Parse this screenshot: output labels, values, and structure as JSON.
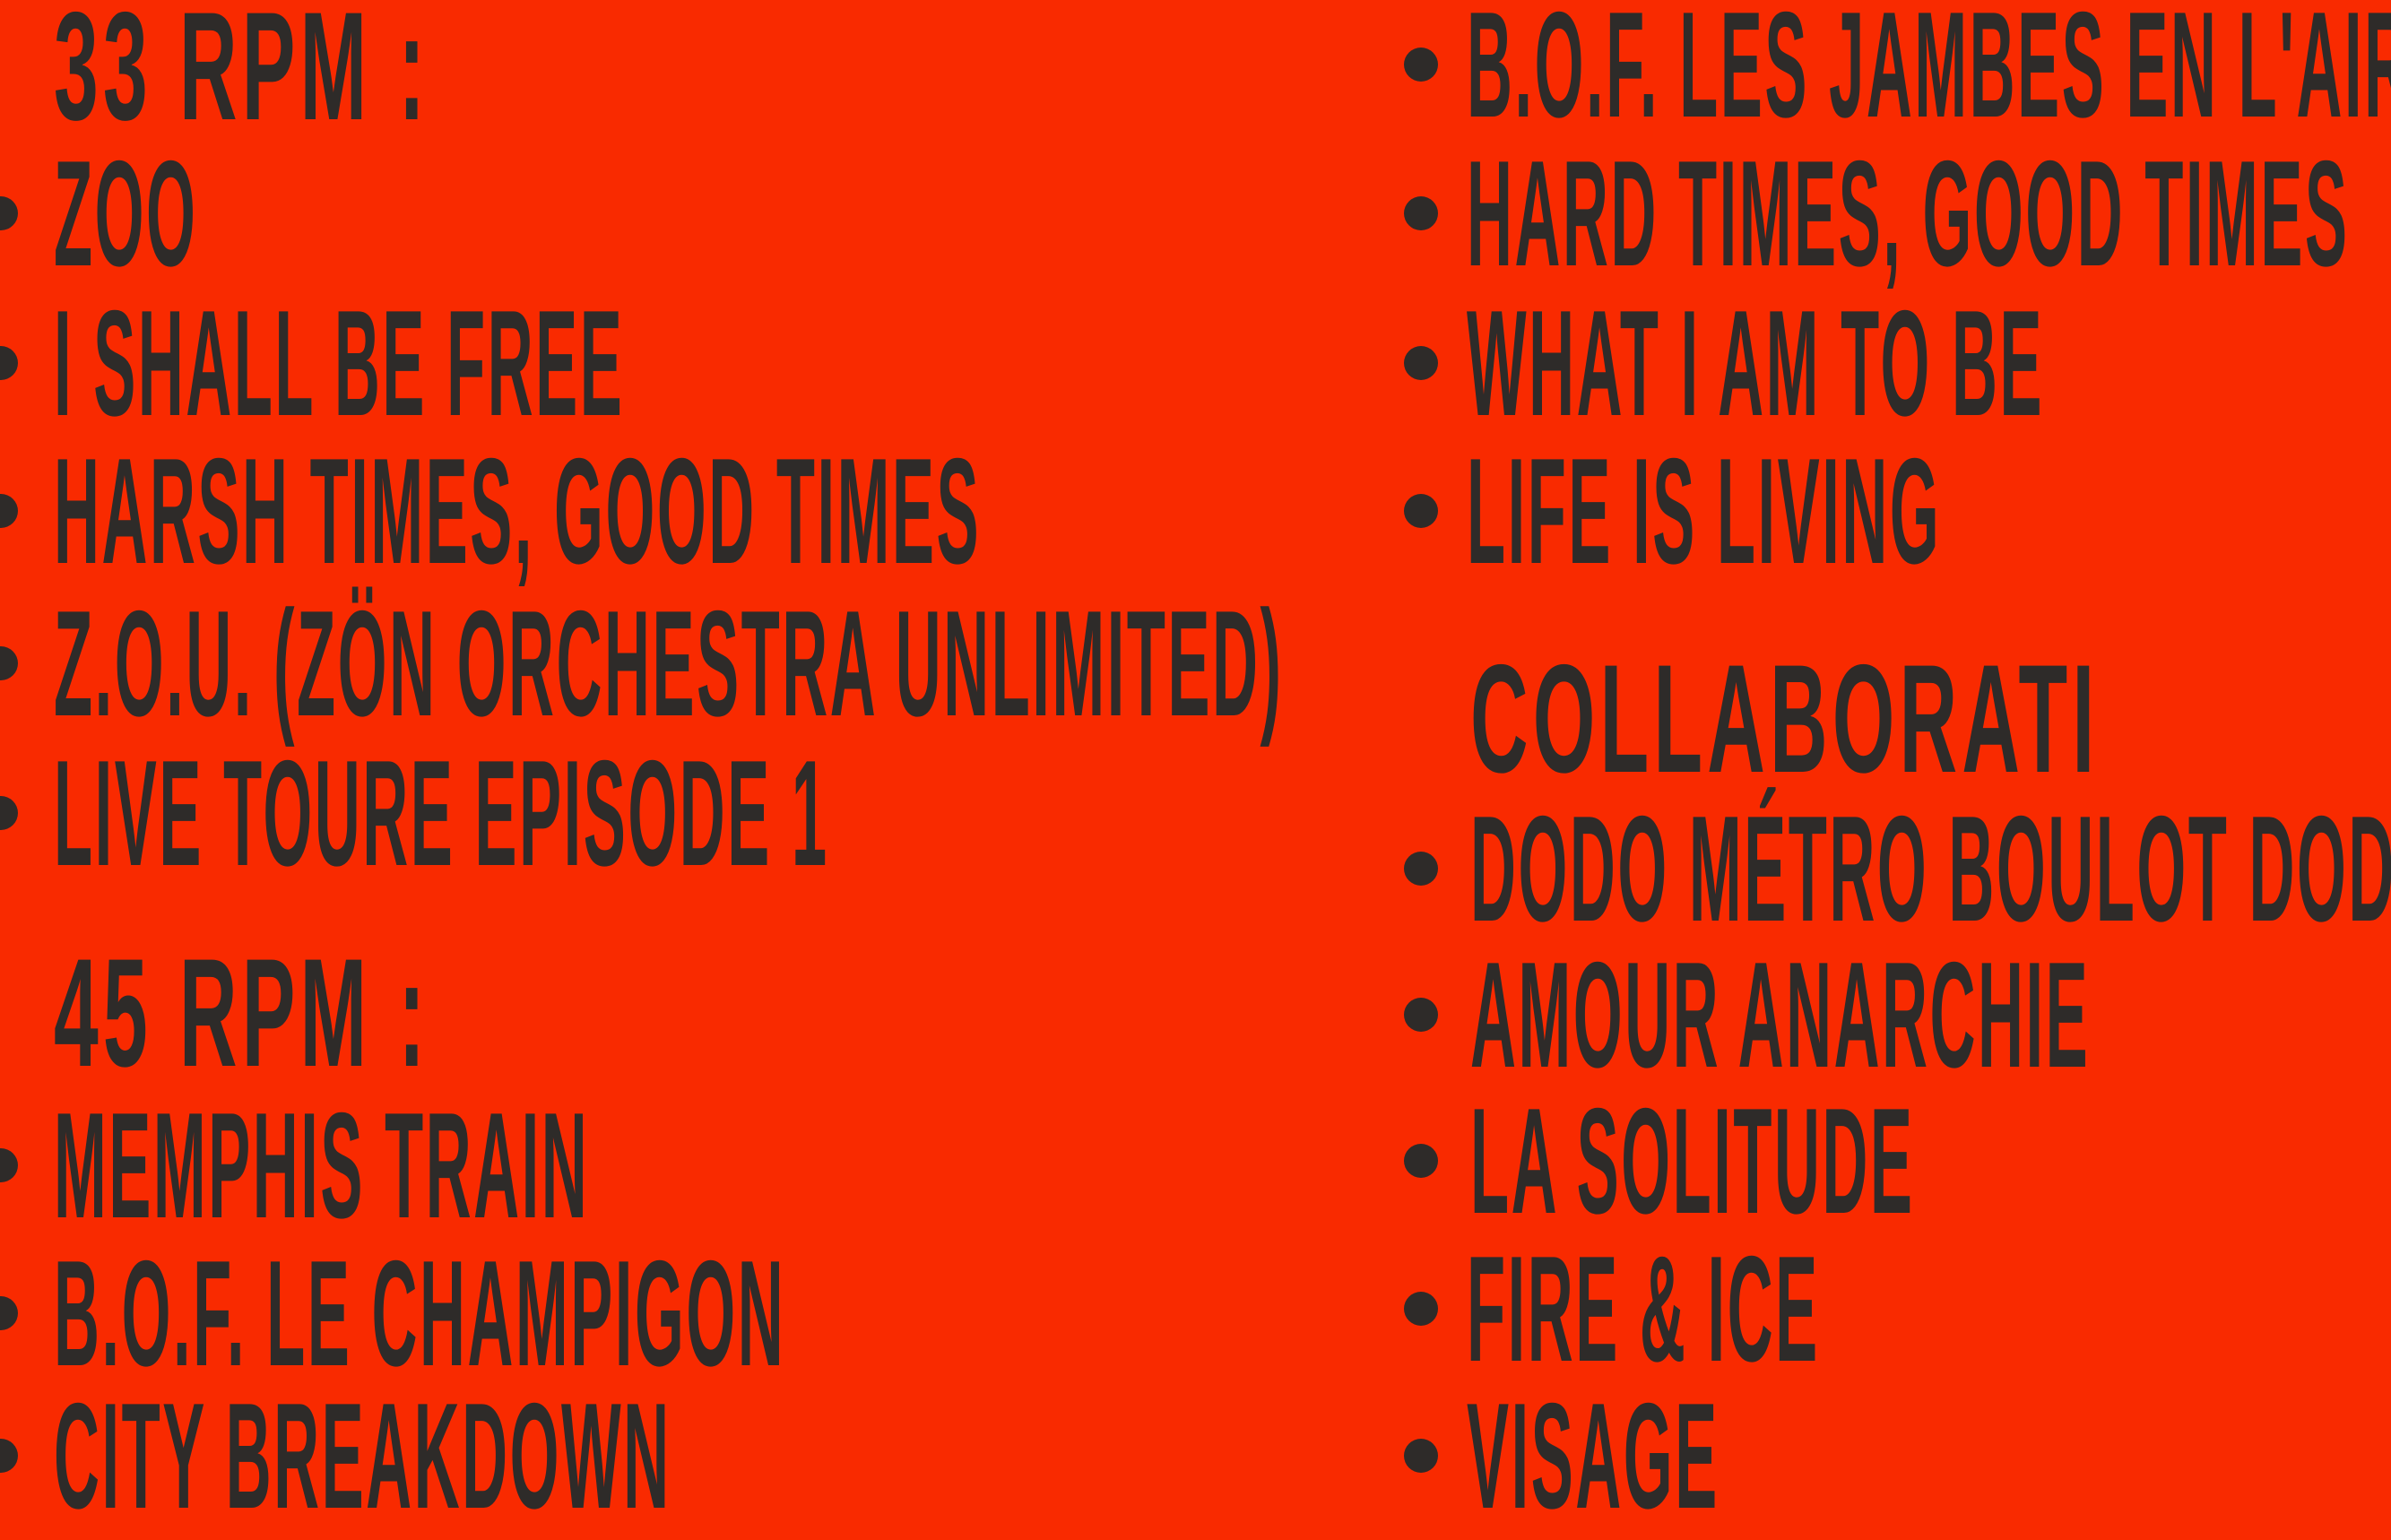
{
  "colors": {
    "background": "#f92a00",
    "text": "#2e2b29"
  },
  "left": {
    "heading_33": "33 RPM :",
    "items_33": [
      "Zoo",
      "I Shall Be Free",
      "Harsh Times, Good Times",
      "Z.O.U. (Zön Orchestra Unlimited)",
      "Live Toure Episode 1"
    ],
    "heading_45": "45 RPM :",
    "items_45": [
      "Memphis Train",
      "B.O.F. Le Champigon",
      "City Breakdown"
    ]
  },
  "right": {
    "items_top": [
      "B.O.F. Les Jambes en l'Air",
      "Hard Times, Good Times",
      "What I Am To Be",
      "Life Is Living"
    ],
    "heading_collab": "Collaborati",
    "items_collab": [
      "Dodo Métro Boulot Dodo",
      "Amour Anarchie",
      "La Solitude",
      "Fire & Ice",
      "Visage"
    ]
  }
}
